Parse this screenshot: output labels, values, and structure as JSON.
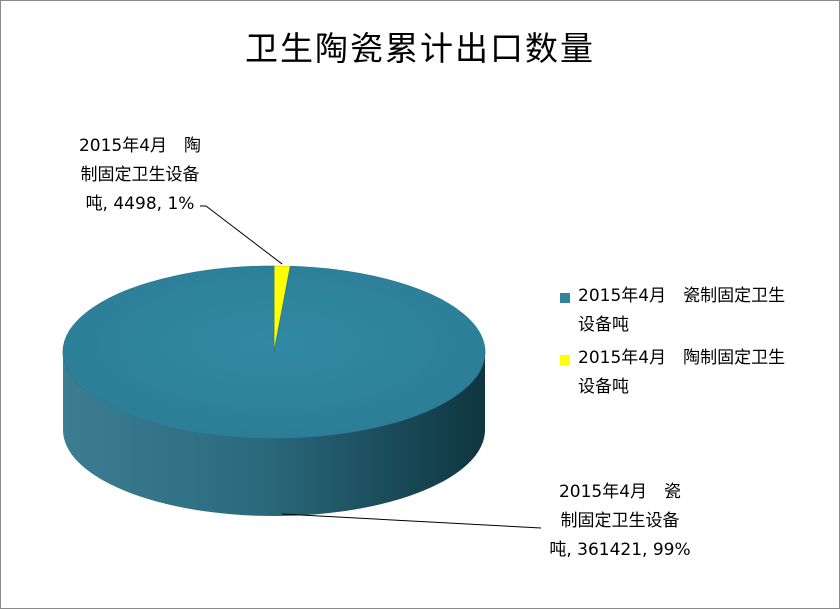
{
  "chart_data": {
    "type": "pie",
    "title": "卫生陶瓷累计出口数量",
    "style": "3d-pie",
    "categories": [
      "2015年4月　瓷制固定卫生设备吨",
      "2015年4月　陶制固定卫生设备吨"
    ],
    "values": [
      361421,
      4498
    ],
    "percents": [
      99,
      1
    ],
    "colors": [
      "#31849B",
      "#FFFF00"
    ],
    "legend": {
      "position": "right",
      "entries": [
        {
          "line1": "2015年4月　瓷制固定卫生",
          "line2": "设备吨"
        },
        {
          "line1": "2015年4月　陶制固定卫生",
          "line2": "设备吨"
        }
      ]
    },
    "data_labels": [
      {
        "line1": "2015年4月　瓷",
        "line2": "制固定卫生设备",
        "line3": "吨, 361421, 99%"
      },
      {
        "line1": "2015年4月　陶",
        "line2": "制固定卫生设备",
        "line3": "吨, 4498, 1%"
      }
    ]
  }
}
